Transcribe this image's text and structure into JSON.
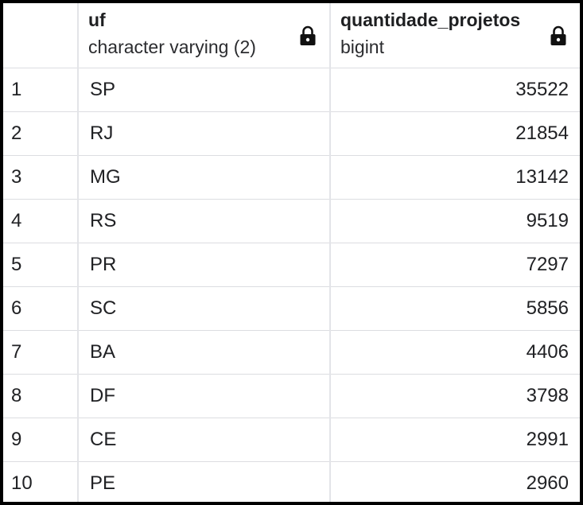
{
  "table": {
    "columns": [
      {
        "name": "",
        "type": ""
      },
      {
        "name": "uf",
        "type": "character varying (2)",
        "icon": "lock-icon"
      },
      {
        "name": "quantidade_projetos",
        "type": "bigint",
        "icon": "lock-icon"
      }
    ],
    "rows": [
      {
        "num": "1",
        "uf": "SP",
        "qty": "35522"
      },
      {
        "num": "2",
        "uf": "RJ",
        "qty": "21854"
      },
      {
        "num": "3",
        "uf": "MG",
        "qty": "13142"
      },
      {
        "num": "4",
        "uf": "RS",
        "qty": "9519"
      },
      {
        "num": "5",
        "uf": "PR",
        "qty": "7297"
      },
      {
        "num": "6",
        "uf": "SC",
        "qty": "5856"
      },
      {
        "num": "7",
        "uf": "BA",
        "qty": "4406"
      },
      {
        "num": "8",
        "uf": "DF",
        "qty": "3798"
      },
      {
        "num": "9",
        "uf": "CE",
        "qty": "2991"
      },
      {
        "num": "10",
        "uf": "PE",
        "qty": "2960"
      }
    ]
  }
}
